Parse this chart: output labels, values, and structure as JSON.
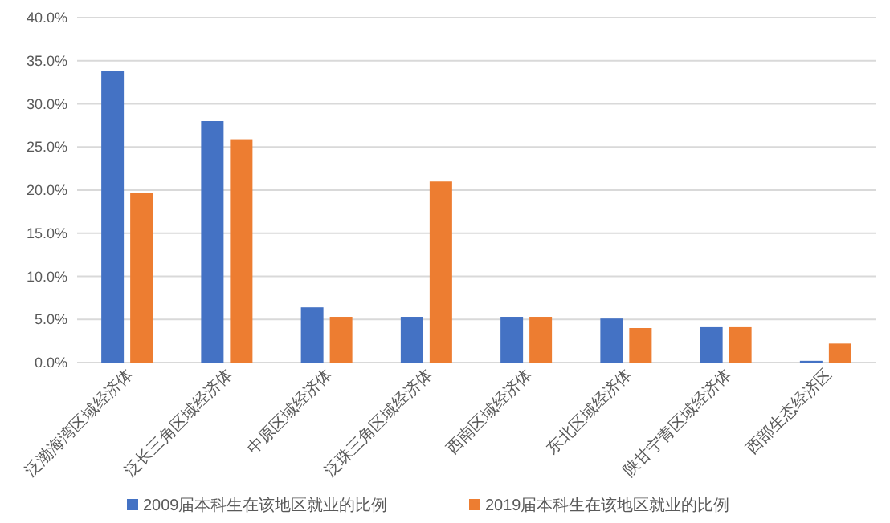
{
  "chart_data": {
    "type": "bar",
    "categories": [
      "泛渤海湾区域经济体",
      "泛长三角区域经济体",
      "中原区域经济体",
      "泛珠三角区域经济体",
      "西南区域经济体",
      "东北区域经济体",
      "陕甘宁青区域经济体",
      "西部生态经济区"
    ],
    "series": [
      {
        "name": "2009届本科生在该地区就业的比例",
        "color": "#4472c4",
        "values": [
          33.8,
          28.0,
          6.4,
          5.3,
          5.3,
          5.1,
          4.1,
          0.2
        ]
      },
      {
        "name": "2019届本科生在该地区就业的比例",
        "color": "#ed7d31",
        "values": [
          19.7,
          25.9,
          5.3,
          21.0,
          5.3,
          4.0,
          4.1,
          2.2
        ]
      }
    ],
    "ylim": [
      0,
      40
    ],
    "yticks": [
      {
        "value": 0,
        "label": "0.0%"
      },
      {
        "value": 5,
        "label": "5.0%"
      },
      {
        "value": 10,
        "label": "10.0%"
      },
      {
        "value": 15,
        "label": "15.0%"
      },
      {
        "value": 20,
        "label": "20.0%"
      },
      {
        "value": 25,
        "label": "25.0%"
      },
      {
        "value": 30,
        "label": "30.0%"
      },
      {
        "value": 35,
        "label": "35.0%"
      },
      {
        "value": 40,
        "label": "40.0%"
      }
    ],
    "grid": "y",
    "legend": "bottom"
  }
}
